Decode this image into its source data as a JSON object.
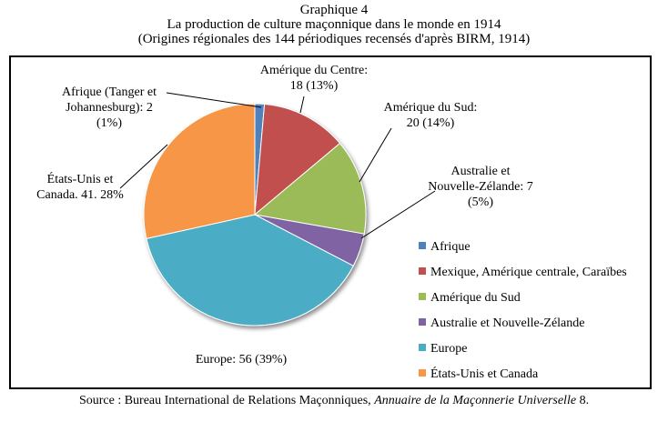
{
  "heading": {
    "line1": "Graphique 4",
    "line2": "La production de culture maçonnique dans le monde en 1914",
    "line3": "(Origines régionales des 144 périodiques recensés d'après BIRM, 1914)"
  },
  "source": {
    "prefix": "Source : Bureau International de Relations Maçonniques, ",
    "italic": "Annuaire de la Maçonnerie Universelle",
    "suffix": " 8."
  },
  "chart_data": {
    "type": "pie",
    "total": 144,
    "slices": [
      {
        "legend": "Afrique",
        "label_lines": [
          "Afrique (Tanger et",
          "Johannesburg): 2",
          "(1%)"
        ],
        "value": 2,
        "percent": 1,
        "color": "#4f81bd"
      },
      {
        "legend": "Mexique, Amérique centrale, Caraïbes",
        "label_lines": [
          "Amérique du Centre:",
          "18 (13%)"
        ],
        "value": 18,
        "percent": 13,
        "color": "#c0504d"
      },
      {
        "legend": "Amérique du Sud",
        "label_lines": [
          "Amérique du Sud:",
          "20 (14%)"
        ],
        "value": 20,
        "percent": 14,
        "color": "#9bbb59"
      },
      {
        "legend": "Australie et Nouvelle-Zélande",
        "label_lines": [
          "Australie et",
          "Nouvelle-Zélande: 7",
          "(5%)"
        ],
        "value": 7,
        "percent": 5,
        "color": "#8064a2"
      },
      {
        "legend": "Europe",
        "label_lines": [
          "Europe: 56 (39%)"
        ],
        "value": 56,
        "percent": 39,
        "color": "#4bacc6"
      },
      {
        "legend": "États-Unis et Canada",
        "label_lines": [
          "États-Unis et",
          "Canada. 41. 28%"
        ],
        "value": 41,
        "percent": 28,
        "color": "#f79646"
      }
    ],
    "legend_position": "right"
  }
}
